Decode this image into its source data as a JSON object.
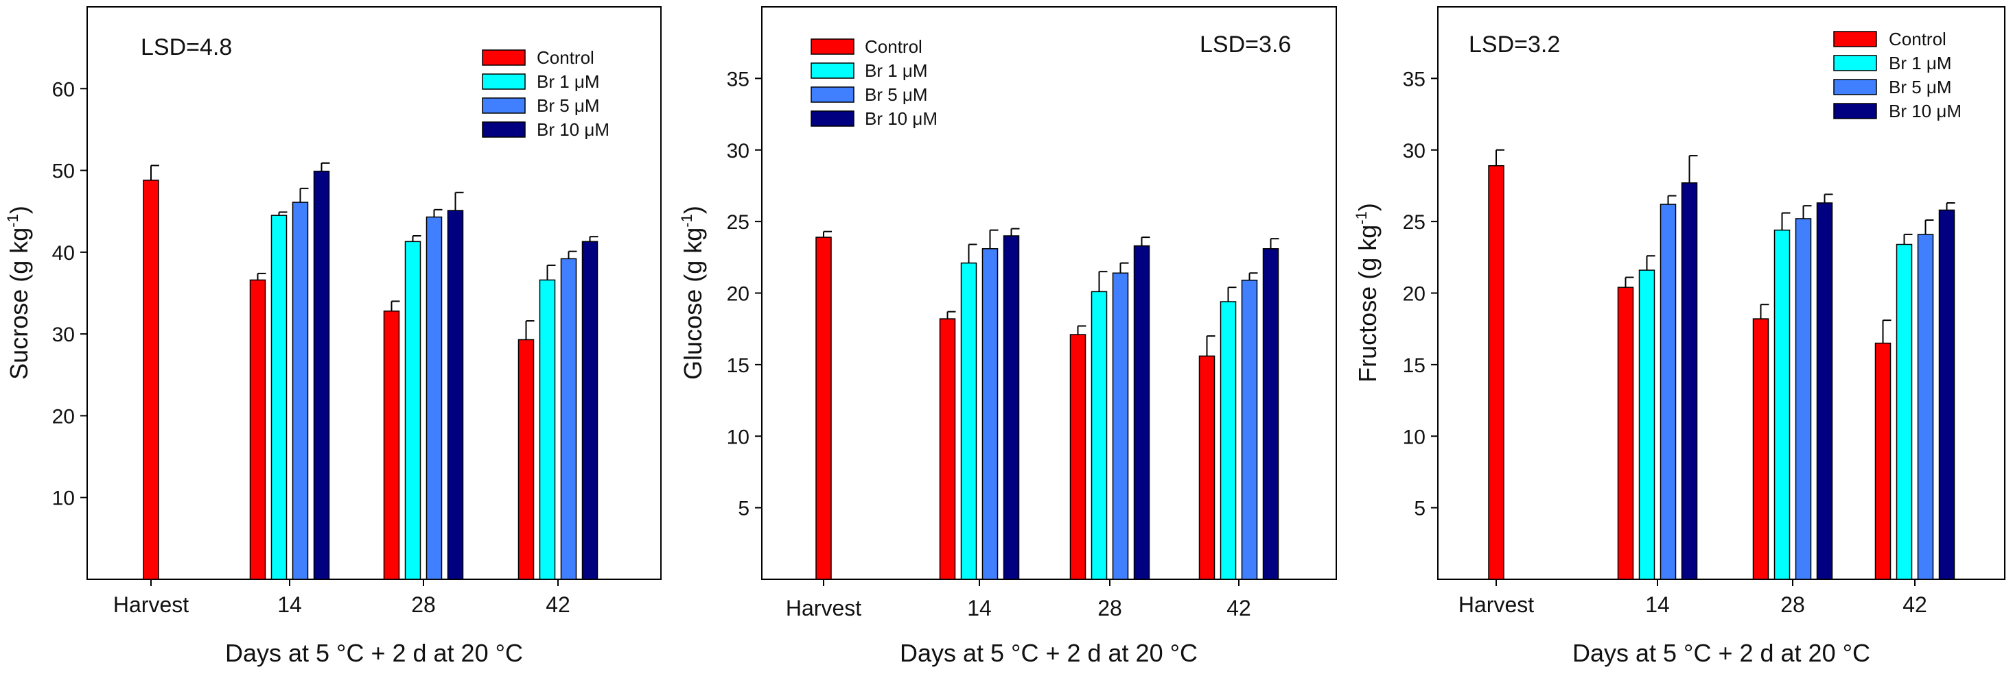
{
  "chart_data": [
    {
      "type": "bar",
      "panel": "sucrose",
      "categories": [
        "Harvest",
        "14",
        "28",
        "42"
      ],
      "ylabel": "Sucrose (g kg",
      "ylabel_sup": "-1",
      "ylabel_close": ")",
      "xlabel": "Days at 5 °C + 2 d at 20 °C",
      "lsd": "LSD=4.8",
      "ylim": [
        0,
        70
      ],
      "yticks": [
        10,
        20,
        30,
        40,
        50,
        60
      ],
      "legend_position": "top-right",
      "series": [
        {
          "name": "Control",
          "color": "#ff0000",
          "values": [
            48.8,
            36.6,
            32.8,
            29.3
          ],
          "errors": [
            1.8,
            0.8,
            1.2,
            2.3
          ]
        },
        {
          "name": "Br 1 μM",
          "color": "#00ffff",
          "values": [
            null,
            44.5,
            41.3,
            36.6
          ],
          "errors": [
            null,
            0.4,
            0.7,
            1.8
          ]
        },
        {
          "name": "Br 5 μM",
          "color": "#4080ff",
          "values": [
            null,
            46.1,
            44.3,
            39.2
          ],
          "errors": [
            null,
            1.7,
            0.9,
            0.9
          ]
        },
        {
          "name": "Br 10 μM",
          "color": "#000080",
          "values": [
            null,
            49.9,
            45.1,
            41.3
          ],
          "errors": [
            null,
            1.0,
            2.2,
            0.6
          ]
        }
      ]
    },
    {
      "type": "bar",
      "panel": "glucose",
      "categories": [
        "Harvest",
        "14",
        "28",
        "42"
      ],
      "ylabel": "Glucose (g kg",
      "ylabel_sup": "-1",
      "ylabel_close": ")",
      "xlabel": "Days at 5 °C + 2 d at 20 °C",
      "lsd": "LSD=3.6",
      "ylim": [
        0,
        40
      ],
      "yticks": [
        5,
        10,
        15,
        20,
        25,
        30,
        35
      ],
      "legend_position": "top-left",
      "series": [
        {
          "name": "Control",
          "color": "#ff0000",
          "values": [
            23.9,
            18.2,
            17.1,
            15.6
          ],
          "errors": [
            0.4,
            0.5,
            0.6,
            1.4
          ]
        },
        {
          "name": "Br 1 μM",
          "color": "#00ffff",
          "values": [
            null,
            22.1,
            20.1,
            19.4
          ],
          "errors": [
            null,
            1.3,
            1.4,
            1.0
          ]
        },
        {
          "name": "Br 5 μM",
          "color": "#4080ff",
          "values": [
            null,
            23.1,
            21.4,
            20.9
          ],
          "errors": [
            null,
            1.3,
            0.7,
            0.5
          ]
        },
        {
          "name": "Br 10 μM",
          "color": "#000080",
          "values": [
            null,
            24.0,
            23.3,
            23.1
          ],
          "errors": [
            null,
            0.5,
            0.6,
            0.7
          ]
        }
      ]
    },
    {
      "type": "bar",
      "panel": "fructose",
      "categories": [
        "Harvest",
        "14",
        "28",
        "42"
      ],
      "ylabel": "Fructose (g kg",
      "ylabel_sup": "-1",
      "ylabel_close": ")",
      "xlabel": "Days at 5 °C + 2 d at 20 °C",
      "lsd": "LSD=3.2",
      "ylim": [
        0,
        40
      ],
      "yticks": [
        5,
        10,
        15,
        20,
        25,
        30,
        35
      ],
      "legend_position": "top-right",
      "series": [
        {
          "name": "Control",
          "color": "#ff0000",
          "values": [
            28.9,
            20.4,
            18.2,
            16.5
          ],
          "errors": [
            1.1,
            0.7,
            1.0,
            1.6
          ]
        },
        {
          "name": "Br 1 μM",
          "color": "#00ffff",
          "values": [
            null,
            21.6,
            24.4,
            23.4
          ],
          "errors": [
            null,
            1.0,
            1.2,
            0.7
          ]
        },
        {
          "name": "Br 5 μM",
          "color": "#4080ff",
          "values": [
            null,
            26.2,
            25.2,
            24.1
          ],
          "errors": [
            null,
            0.6,
            0.9,
            1.0
          ]
        },
        {
          "name": "Br 10 μM",
          "color": "#000080",
          "values": [
            null,
            27.7,
            26.3,
            25.8
          ],
          "errors": [
            null,
            1.9,
            0.6,
            0.5
          ]
        }
      ]
    }
  ]
}
